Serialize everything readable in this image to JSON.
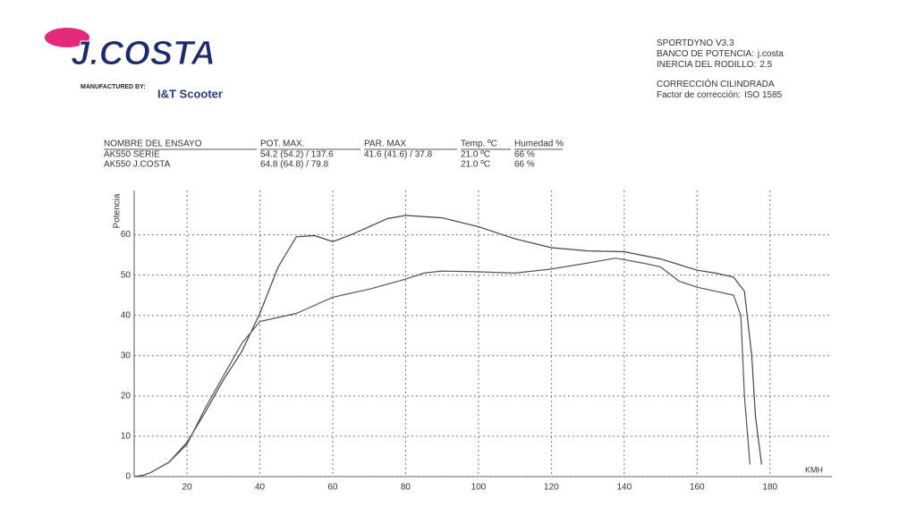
{
  "header": {
    "brand": "J.COSTA",
    "manufactured_by": "MANUFACTURED BY:",
    "maker": "I&T Scooter",
    "info": [
      {
        "label": "SPORTDYNO V3.3"
      },
      {
        "label": "BANCO DE POTENCIA:",
        "value": "j.costa"
      },
      {
        "label": "INERCIA DEL RODILLO:",
        "value": "2.5"
      }
    ],
    "correction": [
      {
        "label": "CORRECCIÓN CILINDRADA"
      },
      {
        "label": "Factor de corrección:",
        "value": "ISO 1585"
      }
    ]
  },
  "table": {
    "columns": [
      "NOMBRE DEL ENSAYO",
      "POT. MAX.",
      "PAR. MAX",
      "Temp. ºC",
      "Humedad %"
    ],
    "rows": [
      [
        "AK550 SERIE",
        "54.2 (54.2) / 137.6",
        "41.6 (41.6) / 37.8",
        "21.0 ºC",
        "66 %"
      ],
      [
        "AK550 J.COSTA",
        "64.8 (64.8) / 79.8",
        null,
        "21.0 ºC",
        "66 %"
      ]
    ]
  },
  "chart_data": {
    "type": "line",
    "y_label": "Potencia",
    "x_label": "KMH",
    "xlim": [
      5.5,
      197
    ],
    "ylim": [
      0,
      71
    ],
    "xticks": [
      20,
      40,
      60,
      80,
      100,
      120,
      140,
      160,
      180
    ],
    "yticks": [
      0,
      10,
      20,
      30,
      40,
      50,
      60
    ],
    "grid": true,
    "series": [
      {
        "color": "#444444",
        "x": [
          5.5,
          8,
          10,
          15,
          20,
          25,
          30,
          35,
          40,
          45,
          50,
          55,
          60,
          65,
          70,
          75,
          80,
          90,
          100,
          110,
          120,
          130,
          140,
          150,
          160,
          165,
          170,
          173,
          175,
          176,
          177.7
        ],
        "values": [
          0,
          0.3,
          1,
          3.5,
          8.5,
          16,
          24,
          31,
          40.5,
          52,
          59.5,
          59.8,
          58.3,
          60,
          62,
          64,
          64.8,
          64.2,
          62,
          59,
          56.8,
          56,
          55.8,
          54,
          51.2,
          50.5,
          49.5,
          46,
          30,
          15,
          3
        ]
      },
      {
        "color": "#555555",
        "x": [
          5.5,
          8,
          10,
          15,
          20,
          25,
          30,
          35,
          40,
          45,
          50,
          55,
          60,
          70,
          80,
          85,
          90,
          100,
          110,
          120,
          130,
          137.6,
          145,
          150,
          155,
          160,
          170,
          172,
          173,
          174.5
        ],
        "values": [
          0,
          0.3,
          1,
          3.5,
          8,
          17,
          25,
          33,
          38.5,
          39.5,
          40.5,
          42.5,
          44.5,
          46.5,
          49,
          50.5,
          51,
          50.8,
          50.5,
          51.5,
          53,
          54.2,
          53,
          52,
          48.5,
          47,
          45,
          40,
          20,
          3
        ]
      }
    ]
  }
}
